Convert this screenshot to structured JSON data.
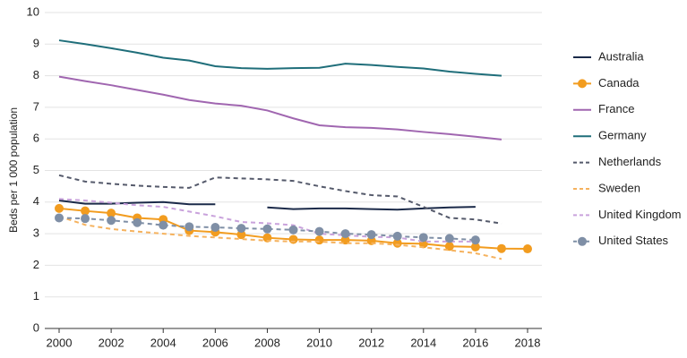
{
  "chart_data": {
    "type": "line",
    "y_label": "Beds per 1 000 population",
    "x": [
      2000,
      2001,
      2002,
      2003,
      2004,
      2005,
      2006,
      2007,
      2008,
      2009,
      2010,
      2011,
      2012,
      2013,
      2014,
      2015,
      2016,
      2017,
      2018
    ],
    "xlim": [
      2000,
      2018
    ],
    "xticks": [
      2000,
      2002,
      2004,
      2006,
      2008,
      2010,
      2012,
      2014,
      2016,
      2018
    ],
    "ylim": [
      0,
      10
    ],
    "yticks": [
      0,
      1,
      2,
      3,
      4,
      5,
      6,
      7,
      8,
      9,
      10
    ],
    "grid": true,
    "legend": "right",
    "series": [
      {
        "name": "Australia",
        "color": "#1b2a49",
        "dashed": false,
        "markers": false,
        "values": [
          4.05,
          3.95,
          3.95,
          3.98,
          4.0,
          3.93,
          3.93,
          null,
          3.83,
          3.78,
          3.8,
          3.8,
          3.78,
          3.76,
          3.8,
          3.83,
          3.85,
          null,
          null
        ]
      },
      {
        "name": "Canada",
        "color": "#f29c1f",
        "dashed": false,
        "markers": true,
        "values": [
          3.8,
          3.72,
          3.65,
          3.5,
          3.45,
          3.1,
          3.05,
          2.97,
          2.87,
          2.82,
          2.8,
          2.8,
          2.78,
          2.7,
          2.68,
          2.6,
          2.58,
          2.53,
          2.52
        ]
      },
      {
        "name": "France",
        "color": "#a066b0",
        "dashed": false,
        "markers": false,
        "values": [
          7.97,
          7.83,
          7.7,
          7.55,
          7.4,
          7.23,
          7.12,
          7.05,
          6.9,
          6.65,
          6.43,
          6.37,
          6.35,
          6.3,
          6.22,
          6.15,
          6.07,
          5.98,
          null
        ]
      },
      {
        "name": "Germany",
        "color": "#1f6e7a",
        "dashed": false,
        "markers": false,
        "values": [
          9.12,
          9.0,
          8.87,
          8.73,
          8.57,
          8.48,
          8.3,
          8.24,
          8.22,
          8.24,
          8.25,
          8.38,
          8.34,
          8.28,
          8.23,
          8.13,
          8.06,
          8.0,
          null
        ]
      },
      {
        "name": "Netherlands",
        "color": "#555a6b",
        "dashed": true,
        "markers": false,
        "values": [
          4.85,
          4.65,
          4.58,
          4.52,
          4.48,
          4.45,
          4.78,
          4.75,
          4.72,
          4.67,
          4.5,
          4.35,
          4.22,
          4.18,
          3.85,
          3.5,
          3.45,
          3.32,
          null
        ]
      },
      {
        "name": "Sweden",
        "color": "#f5b25e",
        "dashed": true,
        "markers": false,
        "values": [
          3.55,
          3.28,
          3.15,
          3.07,
          3.0,
          2.93,
          2.88,
          2.83,
          2.78,
          2.75,
          2.75,
          2.7,
          2.7,
          2.65,
          2.57,
          2.48,
          2.38,
          2.2,
          null
        ]
      },
      {
        "name": "United Kingdom",
        "color": "#c9a2dc",
        "dashed": true,
        "markers": false,
        "values": [
          4.1,
          4.05,
          3.98,
          3.9,
          3.85,
          3.7,
          3.55,
          3.37,
          3.33,
          3.27,
          3.0,
          2.95,
          2.9,
          2.88,
          2.75,
          2.75,
          2.75,
          null,
          null
        ]
      },
      {
        "name": "United States",
        "color": "#7f8fa6",
        "dashed": true,
        "markers": true,
        "values": [
          3.5,
          3.48,
          3.42,
          3.35,
          3.27,
          3.22,
          3.2,
          3.17,
          3.15,
          3.12,
          3.07,
          3.0,
          2.97,
          2.92,
          2.88,
          2.85,
          2.8,
          null,
          null
        ]
      }
    ]
  }
}
